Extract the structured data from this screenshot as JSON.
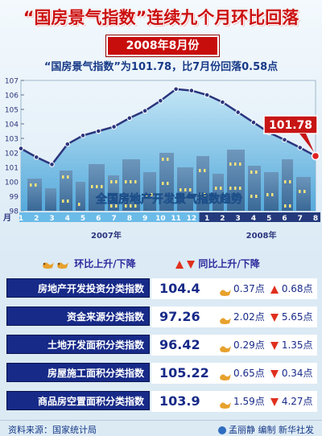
{
  "title": "“国房景气指数”连续九个月环比回落",
  "subtitle": "2008年8月份",
  "headline": "“国房景气指数”为101.78，比7月份回落0.58点",
  "chart_data": {
    "type": "line",
    "title": "全国房地产开发景气指数趋势",
    "y_unit_label": "月",
    "ylim": [
      98,
      107
    ],
    "y_ticks": [
      "98",
      "99",
      "100",
      "101",
      "102",
      "103",
      "104",
      "105",
      "106",
      "107"
    ],
    "x": [
      "1",
      "2",
      "3",
      "4",
      "5",
      "6",
      "7",
      "8",
      "9",
      "10",
      "11",
      "12",
      "1",
      "2",
      "3",
      "4",
      "5",
      "6",
      "7",
      "8"
    ],
    "year_labels": [
      {
        "label": "2007年",
        "start": 0,
        "end": 11
      },
      {
        "label": "2008年",
        "start": 12,
        "end": 19
      }
    ],
    "series": [
      {
        "values": [
          102.3,
          101.7,
          101.2,
          102.6,
          103.2,
          103.5,
          103.8,
          104.4,
          104.9,
          105.6,
          106.4,
          106.3,
          106.0,
          105.5,
          104.8,
          104.1,
          103.4,
          102.9,
          102.36,
          101.78
        ]
      }
    ],
    "callout_value": "101.78",
    "colors": {
      "line": "#2b357d",
      "point": "#2b357d",
      "last_point": "#e02020",
      "area_top": "#a5d7ef",
      "area_bottom": "#5fb0df"
    }
  },
  "legend": {
    "mom_label": "环比上升/下降",
    "yoy_label": "同比上升/下降"
  },
  "rows": [
    {
      "name": "房地产开发投资分类指数",
      "value": "104.4",
      "mom": "0.37点",
      "mom_dir": "down",
      "yoy": "0.68点",
      "yoy_dir": "up"
    },
    {
      "name": "资金来源分类指数",
      "value": "97.26",
      "mom": "2.02点",
      "mom_dir": "down",
      "yoy": "5.65点",
      "yoy_dir": "down"
    },
    {
      "name": "土地开发面积分类指数",
      "value": "96.42",
      "mom": "0.29点",
      "mom_dir": "down",
      "yoy": "1.35点",
      "yoy_dir": "down"
    },
    {
      "name": "房屋施工面积分类指数",
      "value": "105.22",
      "mom": "0.65点",
      "mom_dir": "down",
      "yoy": "0.34点",
      "yoy_dir": "down"
    },
    {
      "name": "商品房空置面积分类指数",
      "value": "103.9",
      "mom": "1.59点",
      "mom_dir": "down",
      "yoy": "4.27点",
      "yoy_dir": "down"
    }
  ],
  "footer": {
    "source": "资料来源：国家统计局",
    "credit": "孟丽静 编制 新华社发"
  }
}
